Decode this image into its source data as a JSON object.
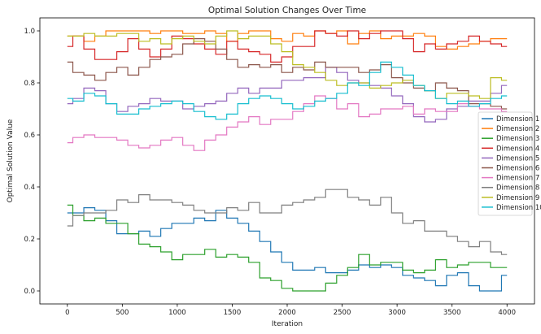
{
  "chart_data": {
    "type": "line",
    "step": true,
    "title": "Optimal Solution Changes Over Time",
    "xlabel": "Iteration",
    "ylabel": "Optimal Solution Value",
    "xlim": [
      -250,
      4250
    ],
    "ylim": [
      -0.05,
      1.05
    ],
    "xticks": [
      0,
      500,
      1000,
      1500,
      2000,
      2500,
      3000,
      3500,
      4000
    ],
    "yticks": [
      0.0,
      0.2,
      0.4,
      0.6,
      0.8,
      1.0
    ],
    "grid": false,
    "legend": "center-right",
    "x": [
      0,
      100,
      200,
      300,
      400,
      500,
      600,
      700,
      800,
      900,
      1000,
      1100,
      1200,
      1300,
      1400,
      1500,
      1600,
      1700,
      1800,
      1900,
      2000,
      2100,
      2200,
      2300,
      2400,
      2500,
      2600,
      2700,
      2800,
      2900,
      3000,
      3100,
      3200,
      3300,
      3400,
      3500,
      3600,
      3700,
      3800,
      3900,
      4000
    ],
    "series": [
      {
        "name": "Dimension 1",
        "color": "#1f77b4",
        "values": [
          0.3,
          0.3,
          0.32,
          0.31,
          0.27,
          0.22,
          0.22,
          0.23,
          0.21,
          0.24,
          0.26,
          0.26,
          0.28,
          0.27,
          0.31,
          0.28,
          0.26,
          0.23,
          0.19,
          0.15,
          0.11,
          0.08,
          0.08,
          0.09,
          0.07,
          0.07,
          0.08,
          0.1,
          0.09,
          0.1,
          0.09,
          0.06,
          0.05,
          0.04,
          0.02,
          0.06,
          0.07,
          0.02,
          0.0,
          0.0,
          0.06
        ]
      },
      {
        "name": "Dimension 2",
        "color": "#ff7f0e",
        "values": [
          0.98,
          0.98,
          0.96,
          0.98,
          1.0,
          1.0,
          1.0,
          1.0,
          0.99,
          1.0,
          1.0,
          0.99,
          0.99,
          1.0,
          0.99,
          0.96,
          0.99,
          1.0,
          1.0,
          0.97,
          0.96,
          0.99,
          0.98,
          1.0,
          0.99,
          1.0,
          0.95,
          0.99,
          1.0,
          0.97,
          0.98,
          0.98,
          0.99,
          0.98,
          0.94,
          0.93,
          0.94,
          0.95,
          0.96,
          0.97,
          0.97
        ]
      },
      {
        "name": "Dimension 3",
        "color": "#2ca02c",
        "values": [
          0.33,
          0.29,
          0.27,
          0.28,
          0.26,
          0.26,
          0.22,
          0.18,
          0.17,
          0.15,
          0.12,
          0.14,
          0.14,
          0.16,
          0.13,
          0.14,
          0.13,
          0.11,
          0.05,
          0.04,
          0.01,
          0.0,
          0.0,
          0.0,
          0.03,
          0.06,
          0.09,
          0.14,
          0.1,
          0.11,
          0.11,
          0.08,
          0.07,
          0.08,
          0.12,
          0.09,
          0.1,
          0.11,
          0.11,
          0.09,
          0.09
        ]
      },
      {
        "name": "Dimension 4",
        "color": "#d62728",
        "values": [
          0.94,
          0.98,
          0.93,
          0.89,
          0.89,
          0.92,
          0.97,
          0.93,
          0.9,
          0.93,
          0.98,
          0.97,
          0.95,
          0.93,
          0.91,
          0.96,
          0.93,
          0.92,
          0.91,
          0.88,
          0.9,
          0.94,
          0.94,
          1.0,
          0.99,
          0.98,
          1.0,
          0.97,
          0.99,
          1.0,
          1.0,
          0.97,
          0.92,
          0.95,
          0.93,
          0.95,
          0.96,
          0.98,
          0.96,
          0.95,
          0.94
        ]
      },
      {
        "name": "Dimension 5",
        "color": "#9467bd",
        "values": [
          0.72,
          0.74,
          0.78,
          0.77,
          0.72,
          0.69,
          0.71,
          0.72,
          0.74,
          0.73,
          0.73,
          0.7,
          0.71,
          0.72,
          0.73,
          0.76,
          0.78,
          0.76,
          0.78,
          0.78,
          0.81,
          0.81,
          0.82,
          0.82,
          0.86,
          0.84,
          0.81,
          0.8,
          0.79,
          0.78,
          0.75,
          0.72,
          0.67,
          0.65,
          0.66,
          0.7,
          0.71,
          0.73,
          0.73,
          0.76,
          0.79
        ]
      },
      {
        "name": "Dimension 6",
        "color": "#8c564b",
        "values": [
          0.88,
          0.84,
          0.83,
          0.81,
          0.84,
          0.86,
          0.83,
          0.86,
          0.89,
          0.9,
          0.91,
          0.95,
          0.97,
          0.96,
          0.93,
          0.89,
          0.86,
          0.87,
          0.86,
          0.87,
          0.84,
          0.86,
          0.85,
          0.88,
          0.86,
          0.86,
          0.86,
          0.84,
          0.85,
          0.87,
          0.82,
          0.8,
          0.78,
          0.77,
          0.8,
          0.78,
          0.77,
          0.72,
          0.72,
          0.71,
          0.7
        ]
      },
      {
        "name": "Dimension 7",
        "color": "#e377c2",
        "values": [
          0.57,
          0.59,
          0.6,
          0.59,
          0.59,
          0.58,
          0.56,
          0.55,
          0.56,
          0.58,
          0.59,
          0.56,
          0.54,
          0.58,
          0.6,
          0.63,
          0.65,
          0.67,
          0.64,
          0.66,
          0.66,
          0.69,
          0.72,
          0.75,
          0.74,
          0.7,
          0.72,
          0.67,
          0.68,
          0.7,
          0.7,
          0.71,
          0.68,
          0.7,
          0.69,
          0.69,
          0.72,
          0.71,
          0.7,
          0.7,
          0.69
        ]
      },
      {
        "name": "Dimension 8",
        "color": "#7f7f7f",
        "values": [
          0.25,
          0.29,
          0.3,
          0.3,
          0.31,
          0.35,
          0.34,
          0.37,
          0.35,
          0.35,
          0.34,
          0.33,
          0.31,
          0.3,
          0.3,
          0.32,
          0.31,
          0.34,
          0.3,
          0.3,
          0.33,
          0.34,
          0.35,
          0.36,
          0.39,
          0.39,
          0.36,
          0.35,
          0.33,
          0.36,
          0.3,
          0.26,
          0.27,
          0.23,
          0.23,
          0.21,
          0.19,
          0.17,
          0.19,
          0.15,
          0.14
        ]
      },
      {
        "name": "Dimension 9",
        "color": "#bcbd22",
        "values": [
          0.98,
          0.98,
          0.99,
          0.98,
          0.98,
          0.99,
          0.99,
          0.96,
          0.97,
          0.95,
          0.97,
          0.98,
          0.96,
          0.95,
          0.98,
          1.0,
          0.97,
          0.98,
          0.98,
          0.95,
          0.92,
          0.87,
          0.86,
          0.84,
          0.81,
          0.79,
          0.8,
          0.8,
          0.78,
          0.79,
          0.8,
          0.81,
          0.79,
          0.77,
          0.74,
          0.76,
          0.76,
          0.75,
          0.74,
          0.82,
          0.81
        ]
      },
      {
        "name": "Dimension 10",
        "color": "#17becf",
        "values": [
          0.74,
          0.73,
          0.76,
          0.75,
          0.72,
          0.68,
          0.68,
          0.7,
          0.71,
          0.72,
          0.73,
          0.72,
          0.69,
          0.67,
          0.66,
          0.68,
          0.72,
          0.74,
          0.75,
          0.74,
          0.72,
          0.7,
          0.71,
          0.73,
          0.74,
          0.76,
          0.8,
          0.79,
          0.84,
          0.88,
          0.86,
          0.83,
          0.79,
          0.77,
          0.74,
          0.72,
          0.73,
          0.71,
          0.72,
          0.74,
          0.75
        ]
      }
    ]
  }
}
